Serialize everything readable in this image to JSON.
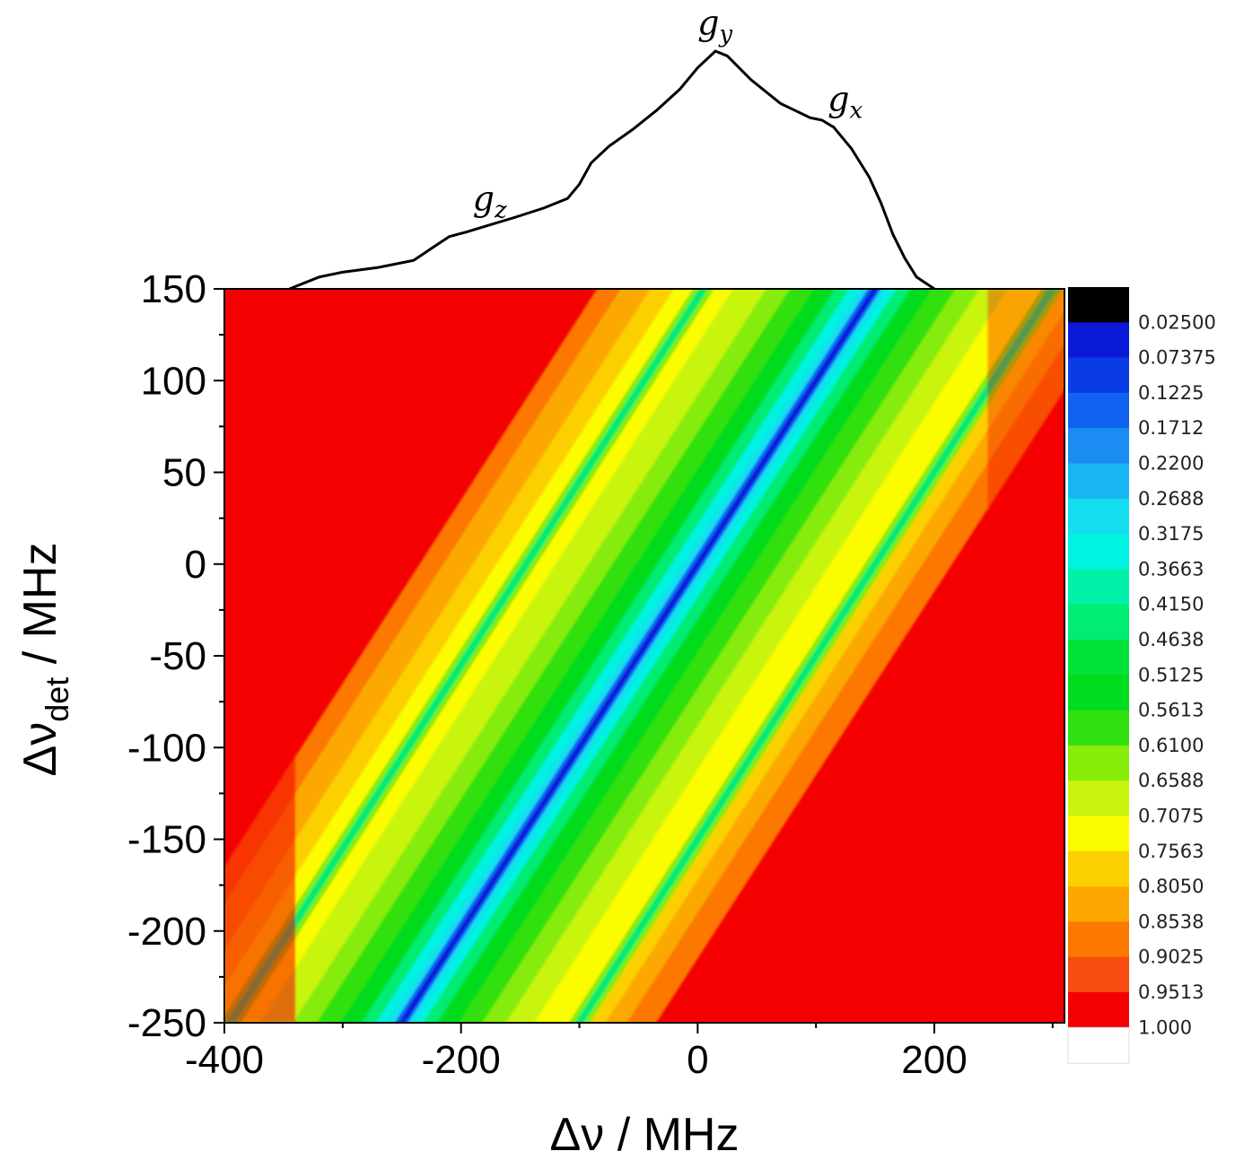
{
  "chart_data": {
    "type": "heatmap",
    "title": "",
    "xlabel": "Δν / MHz",
    "ylabel_main": "Δν",
    "ylabel_sub": "det",
    "ylabel_unit": " / MHz",
    "xlim": [
      -400,
      310
    ],
    "ylim": [
      -250,
      150
    ],
    "x_ticks": [
      -400,
      -200,
      0,
      200
    ],
    "x_tick_labels": [
      "-400",
      "-200",
      "0",
      "200"
    ],
    "y_ticks": [
      150,
      100,
      50,
      0,
      -50,
      -100,
      -150,
      -200,
      -250
    ],
    "y_tick_labels": [
      "150",
      "100",
      "50",
      "0",
      "-50",
      "-100",
      "-150",
      "-200",
      "-250"
    ],
    "grid": false,
    "colorbar": {
      "levels": [
        "0.02500",
        "0.07375",
        "0.1225",
        "0.1712",
        "0.2200",
        "0.2688",
        "0.3175",
        "0.3663",
        "0.4150",
        "0.4638",
        "0.5125",
        "0.5613",
        "0.6100",
        "0.6588",
        "0.7075",
        "0.7563",
        "0.8050",
        "0.8538",
        "0.9025",
        "0.9513",
        "1.000"
      ],
      "colors": [
        "#000000",
        "#0a18d8",
        "#0a3ce6",
        "#0f63f0",
        "#1a8cf2",
        "#17b6f2",
        "#14ddf0",
        "#00f2e0",
        "#00f0a8",
        "#00ec72",
        "#00e43a",
        "#00dc1e",
        "#30e010",
        "#86ec08",
        "#c8f410",
        "#fcfc00",
        "#fcd000",
        "#fca800",
        "#fc7800",
        "#f84c10",
        "#f40000"
      ],
      "position": "right"
    },
    "diagonal_features": {
      "description_unit": "MHz",
      "main_minimum_line": {
        "slope": 1.0,
        "intercept": 0,
        "value": 0.025
      },
      "side_lines": [
        {
          "slope": 1.0,
          "intercept": 145,
          "value": 0.4638
        },
        {
          "slope": 1.0,
          "intercept": -150,
          "value": 0.4638
        }
      ]
    },
    "epr_spectrum": {
      "x": [
        -345,
        -320,
        -300,
        -270,
        -240,
        -225,
        -210,
        -195,
        -175,
        -155,
        -130,
        -110,
        -100,
        -90,
        -75,
        -55,
        -35,
        -15,
        0,
        15,
        25,
        45,
        70,
        95,
        105,
        115,
        130,
        145,
        155,
        165,
        175,
        185,
        200
      ],
      "y": [
        0.0,
        0.05,
        0.07,
        0.09,
        0.12,
        0.17,
        0.22,
        0.24,
        0.27,
        0.3,
        0.34,
        0.38,
        0.44,
        0.53,
        0.6,
        0.67,
        0.75,
        0.84,
        0.93,
        1.0,
        0.98,
        0.88,
        0.78,
        0.72,
        0.71,
        0.68,
        0.59,
        0.47,
        0.36,
        0.23,
        0.13,
        0.05,
        0.0
      ],
      "peaks": [
        {
          "x": -175,
          "y": 0.36,
          "label": "g",
          "sub": "z"
        },
        {
          "x": 15,
          "y": 1.1,
          "label": "g",
          "sub": "y"
        },
        {
          "x": 125,
          "y": 0.78,
          "label": "g",
          "sub": "x"
        }
      ]
    }
  }
}
